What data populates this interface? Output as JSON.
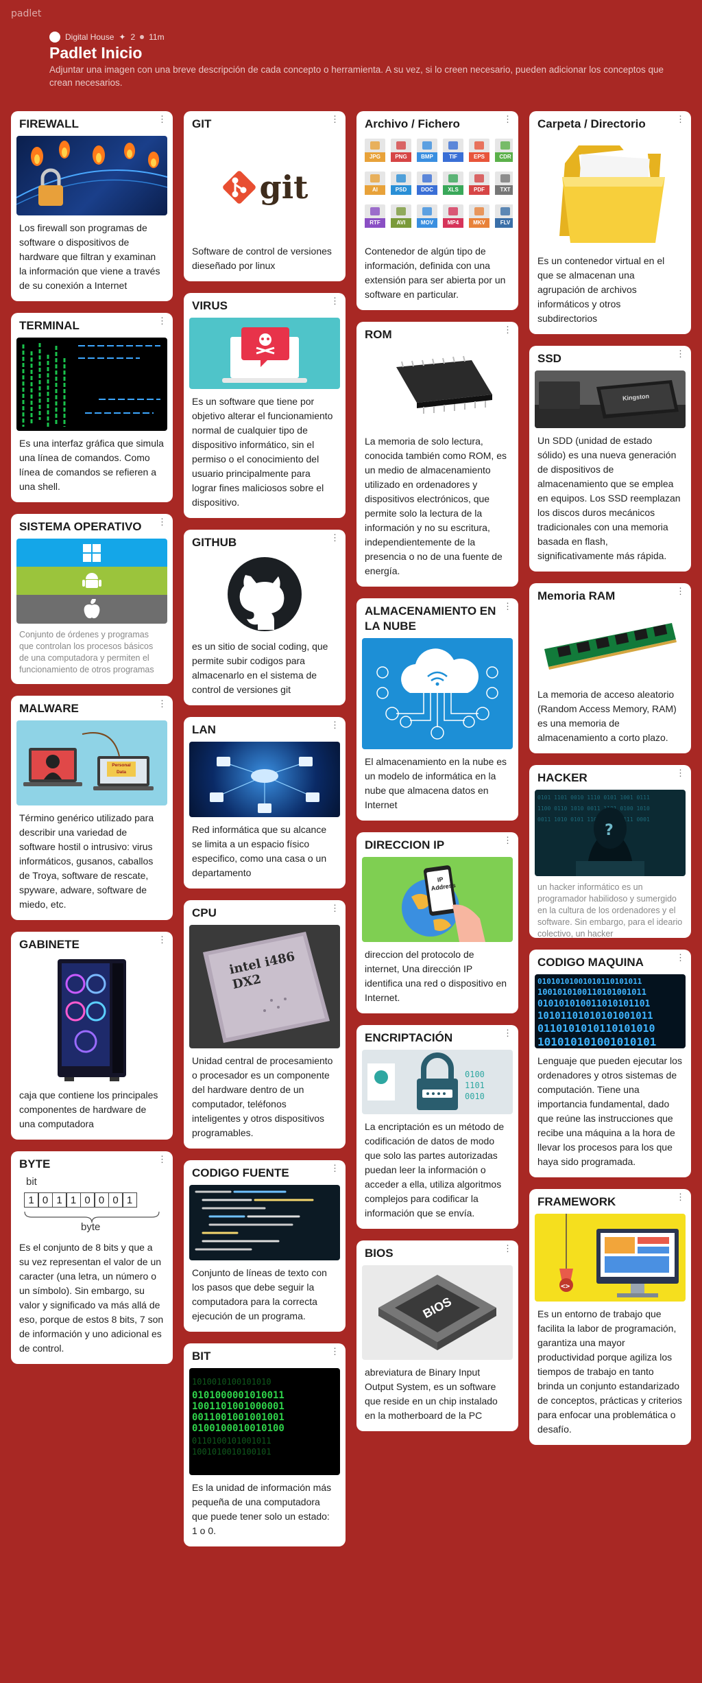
{
  "brand": "padlet",
  "header": {
    "author": "Digital House",
    "likes": "2",
    "time": "11m",
    "title": "Padlet Inicio",
    "description": "Adjuntar una imagen con una breve descripción de cada concepto o herramienta. A su vez, si lo creen necesario, pueden adicionar los conceptos que crean necesarios."
  },
  "icons": {
    "more": "more-vertical-icon",
    "star": "star-icon",
    "clock": "clock-icon"
  },
  "colors": {
    "background": "#a82824",
    "card": "#ffffff"
  },
  "columns": [
    [
      {
        "id": "firewall",
        "title": "FIREWALL",
        "image": "firewall-lock-flames",
        "body": "Los firewall son programas de software o dispositivos de hardware que filtran y examinan la información que viene a través de su conexión a Internet"
      },
      {
        "id": "terminal",
        "title": "TERMINAL",
        "image": "terminal-screen",
        "body": "Es una interfaz gráfica que simula una línea de comandos. Como línea de comandos se refieren a una shell."
      },
      {
        "id": "sistema-operativo",
        "title": "SISTEMA OPERATIVO",
        "image": "os-logos",
        "body": "Conjunto de órdenes y programas que controlan los procesos básicos de una computadora y permiten el funcionamiento de otros programas"
      },
      {
        "id": "malware",
        "title": "MALWARE",
        "image": "malware-illustration",
        "image_text": "Personal Data",
        "body": "Término genérico utilizado para describir una variedad de software hostil o intrusivo: virus informáticos, gusanos, caballos de Troya, software de rescate, spyware, adware, software de miedo, etc."
      },
      {
        "id": "gabinete",
        "title": "GABINETE",
        "image": "pc-case",
        "body": "caja que contiene los principales componentes de hardware de una computadora"
      },
      {
        "id": "byte",
        "title": "BYTE",
        "image": "byte-diagram",
        "bits": [
          "1",
          "0",
          "1",
          "1",
          "0",
          "0",
          "0",
          "1"
        ],
        "bit_label": "bit",
        "byte_label": "byte",
        "body": "Es el conjunto de 8 bits y que a su vez representan el valor de un caracter (una letra, un número o un símbolo). Sin embargo, su valor y significado va más allá de eso, porque de estos 8 bits, 7 son de información y uno adicional es de control."
      }
    ],
    [
      {
        "id": "git",
        "title": "GIT",
        "image": "git-logo",
        "image_text": "git",
        "body": "Software de control de versiones dieseñado por linux"
      },
      {
        "id": "virus",
        "title": "VIRUS",
        "image": "virus-laptop",
        "body": "Es un software que tiene por objetivo alterar el funcionamiento normal de cualquier tipo de dispositivo informático, sin el permiso o el conocimiento del usuario principalmente para lograr fines maliciosos sobre el dispositivo."
      },
      {
        "id": "github",
        "title": "GITHUB",
        "image": "github-logo",
        "body": "es un sitio de social coding, que permite subir codigos para almacenarlo en el sistema de control de versiones git"
      },
      {
        "id": "lan",
        "title": "LAN",
        "image": "lan-network",
        "body": "Red informática que su alcance se limita a un espacio físico especifico, como una casa o un departamento"
      },
      {
        "id": "cpu",
        "title": "CPU",
        "image": "intel-cpu",
        "image_text": "intel i486 DX2",
        "body": "Unidad central de procesamiento o procesador es un componente del hardware dentro de un computador, teléfonos inteligentes y otros dispositivos programables."
      },
      {
        "id": "codigo-fuente",
        "title": "CODIGO FUENTE",
        "image": "source-code",
        "body": "Conjunto de líneas de texto con los pasos que debe seguir la computadora para la correcta ejecución de un programa."
      },
      {
        "id": "bit",
        "title": "BIT",
        "image": "binary-matrix",
        "body": "Es la unidad de información más pequeña de una computadora que puede tener solo un estado: 1 o 0."
      }
    ],
    [
      {
        "id": "archivo",
        "title": "Archivo / Fichero",
        "image": "file-type-icons",
        "file_types": [
          "JPG",
          "PNG",
          "BMP",
          "TIF",
          "EPS",
          "CDR",
          "AI",
          "PSD",
          "DOC",
          "XLS",
          "PDF",
          "TXT",
          "RTF",
          "AVI",
          "MOV",
          "MP4",
          "MKV",
          "FLV"
        ],
        "body": "Contenedor de algún tipo de información, definida con una extensión para ser abierta por un software en particular."
      },
      {
        "id": "rom",
        "title": "ROM",
        "image": "rom-chip",
        "body": "La memoria de solo lectura, conocida también como ROM, es un medio de almacenamiento utilizado en ordenadores y dispositivos electrónicos, que permite solo la lectura de la información y no su escritura, independientemente de la presencia o no de una fuente de energía."
      },
      {
        "id": "nube",
        "title": "ALMACENAMIENTO EN LA NUBE",
        "image": "cloud-network",
        "body": "El almacenamiento en la nube es un modelo de informática en la nube que almacena datos en Internet"
      },
      {
        "id": "ip",
        "title": "DIRECCION IP",
        "image": "ip-phone",
        "image_text": "IP Address",
        "body": "direccion del protocolo de internet, Una dirección IP identifica una red o dispositivo en Internet."
      },
      {
        "id": "encriptacion",
        "title": "ENCRIPTACIÓN",
        "image": "encryption-lock",
        "body": "La encriptación es un método de codificación de datos de modo que solo las partes autorizadas puedan leer la información o acceder a ella, utiliza algoritmos complejos para codificar la información que se envía."
      },
      {
        "id": "bios",
        "title": "BIOS",
        "image": "bios-chip",
        "image_text": "BIOS",
        "body": "abreviatura de Binary Input Output System, es un software que reside en un chip instalado en la motherboard de la PC"
      }
    ],
    [
      {
        "id": "carpeta",
        "title": "Carpeta / Directorio",
        "image": "yellow-folder",
        "body": "Es un contenedor virtual en el que se almacenan una agrupación de archivos informáticos y otros subdirectorios"
      },
      {
        "id": "ssd",
        "title": "SSD",
        "image": "ssd-drive",
        "image_text": "Kingston",
        "body": "Un SDD (unidad de estado sólido) es una nueva generación de dispositivos de almacenamiento que se emplea en equipos. Los SSD reemplazan los discos duros mecánicos tradicionales con una memoria basada en flash, significativamente más rápida."
      },
      {
        "id": "ram",
        "title": "Memoria RAM",
        "image": "ram-module",
        "body": "La memoria de acceso aleatorio (Random Access Memory, RAM) es una memoria de almacenamiento a corto plazo."
      },
      {
        "id": "hacker",
        "title": "HACKER",
        "image": "hacker-hood",
        "body": "un hacker informático es un programador habilidoso y sumergido en la cultura de los ordenadores y el software. Sin embargo, para el ideario colectivo, un hacker"
      },
      {
        "id": "codigo-maquina",
        "title": "CODIGO MAQUINA",
        "image": "machine-code",
        "body": "Lenguaje que pueden ejecutar los ordenadores y otros sistemas de computación. Tiene una importancia fundamental, dado que reúne las instrucciones que recibe una máquina a la hora de llevar los procesos para los que haya sido programada."
      },
      {
        "id": "framework",
        "title": "FRAMEWORK",
        "image": "framework-illustration",
        "body": "Es un entorno de trabajo que facilita la labor de programación, garantiza una mayor productividad porque agiliza los tiempos de trabajo en tanto brinda un conjunto estandarizado de conceptos, prácticas y criterios para enfocar una problemática o desafío."
      }
    ]
  ]
}
